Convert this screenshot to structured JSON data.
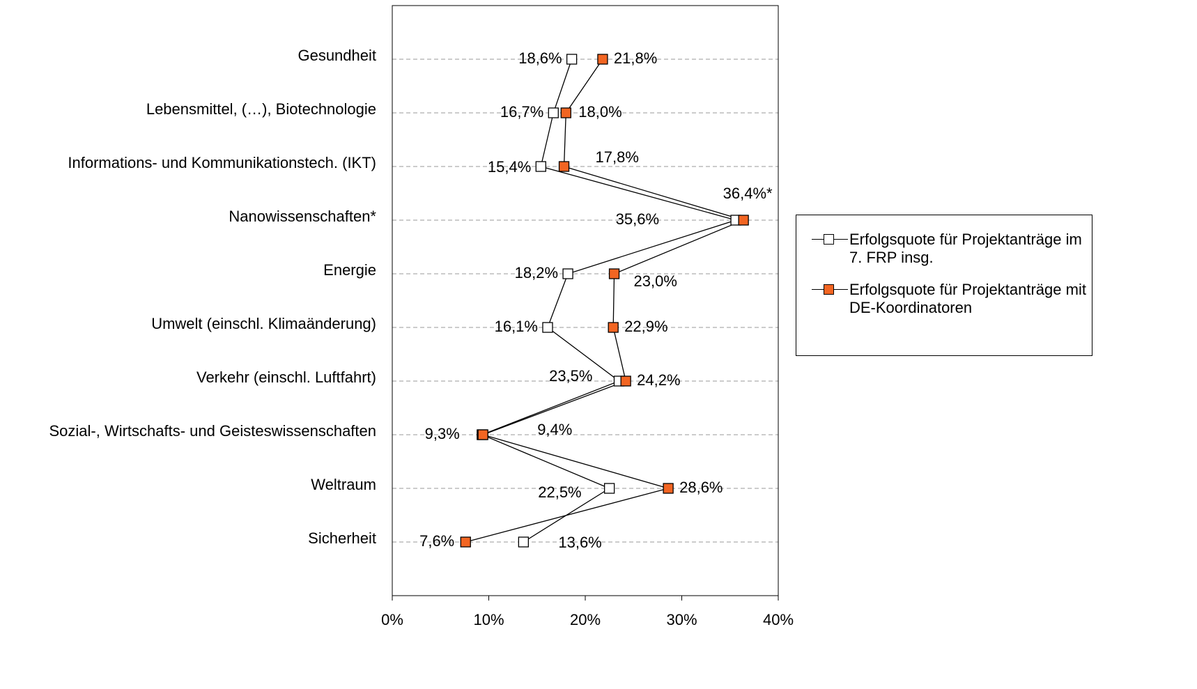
{
  "chart_data": {
    "type": "line",
    "categories": [
      "Gesundheit",
      "Lebensmittel, (…),  Biotechnologie",
      "Informations- und Kommunikationstech. (IKT)",
      "Nanowissenschaften*",
      "Energie",
      "Umwelt (einschl. Klimaänderung)",
      "Verkehr (einschl. Luftfahrt)",
      "Sozial-, Wirtschafts- und Geisteswissenschaften",
      "Weltraum",
      "Sicherheit"
    ],
    "series": [
      {
        "name": "Erfolgsquote für Projektanträge im 7. FRP insg.",
        "color": "#ffffff",
        "values": [
          18.6,
          16.7,
          15.4,
          35.6,
          18.2,
          16.1,
          23.5,
          9.3,
          22.5,
          13.6
        ],
        "value_labels": [
          "18,6%",
          "16,7%",
          "15,4%",
          "35,6%",
          "18,2%",
          "16,1%",
          "23,5%",
          "9,3%",
          "22,5%",
          "13,6%"
        ]
      },
      {
        "name": "Erfolgsquote für Projektanträge mit DE-Koordinatoren",
        "color": "#f26522",
        "values": [
          21.8,
          18.0,
          17.8,
          36.4,
          23.0,
          22.9,
          24.2,
          9.4,
          28.6,
          7.6
        ],
        "value_labels": [
          "21,8%",
          "18,0%",
          "17,8%",
          "36,4%*",
          "23,0%",
          "22,9%",
          "24,2%",
          "9,4%",
          "28,6%",
          "7,6%"
        ]
      }
    ],
    "xlim": [
      0,
      40
    ],
    "xticks": [
      {
        "value": 0,
        "label": "0%"
      },
      {
        "value": 10,
        "label": "10%"
      },
      {
        "value": 20,
        "label": "20%"
      },
      {
        "value": 30,
        "label": "30%"
      },
      {
        "value": 40,
        "label": "40%"
      }
    ],
    "grid": true,
    "legend": "right"
  }
}
